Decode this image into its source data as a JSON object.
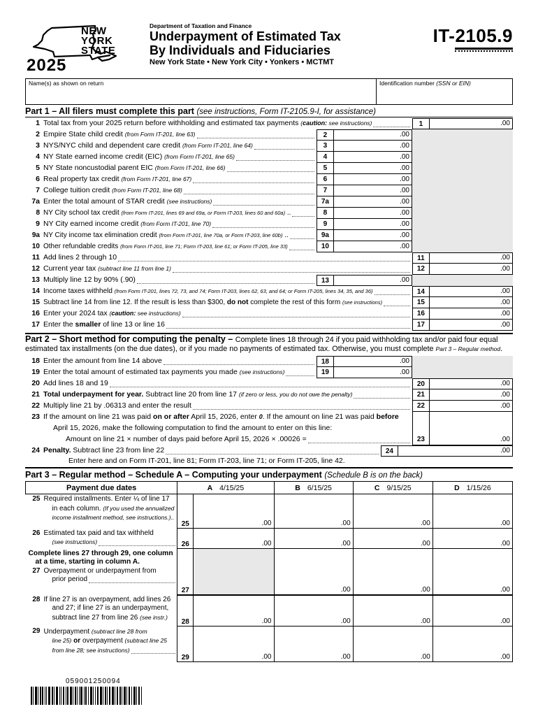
{
  "form": {
    "year": "2025",
    "logo_line1": "NEW",
    "logo_line2": "YORK",
    "logo_line3": "STATE",
    "department": "Department of Taxation and Finance",
    "title1": "Underpayment of Estimated Tax",
    "title2": "By Individuals and Fiduciaries",
    "subtitle": "New York State • New York City • Yonkers • MCTMT",
    "number_prefix": "IT-",
    "number_main": "2105.9"
  },
  "identity": {
    "name_label": "Name(s) as shown on return",
    "name_value": "",
    "id_label": "Identification number ",
    "id_label_italic": "(SSN or EIN)",
    "id_value": ""
  },
  "part1": {
    "title": "Part 1 – All filers must complete this part ",
    "title_note": "(see instructions, Form IT-2105.9-I, for assistance)",
    "rows": [
      {
        "num": "1",
        "segs": [
          [
            "Total tax from your 2025 return before withholding and estimated tax payments ",
            "r"
          ],
          [
            "(",
            "i"
          ],
          [
            "caution:",
            "bi"
          ],
          [
            " see instructions)",
            "i"
          ]
        ],
        "amount": ".00"
      },
      {
        "num": "2",
        "segs": [
          [
            "Empire State child credit ",
            "r"
          ],
          [
            "(from Form IT-201, line 63)",
            "i"
          ]
        ],
        "amount": ".00"
      },
      {
        "num": "3",
        "segs": [
          [
            "NYS/NYC child and dependent care credit ",
            "r"
          ],
          [
            "(from Form IT-201, line 64)",
            "i"
          ]
        ],
        "amount": ".00"
      },
      {
        "num": "4",
        "segs": [
          [
            "NY State earned income credit (EIC) ",
            "r"
          ],
          [
            "(from Form IT-201, line 65)",
            "i"
          ]
        ],
        "amount": ".00"
      },
      {
        "num": "5",
        "segs": [
          [
            "NY State noncustodial parent EIC ",
            "r"
          ],
          [
            "(from Form IT-201, line 66)",
            "i"
          ]
        ],
        "amount": ".00"
      },
      {
        "num": "6",
        "segs": [
          [
            "Real property tax credit ",
            "r"
          ],
          [
            "(from Form IT-201, line 67)",
            "i"
          ]
        ],
        "amount": ".00"
      },
      {
        "num": "7",
        "segs": [
          [
            "College tuition credit ",
            "r"
          ],
          [
            "(from Form IT-201, line 68)",
            "i"
          ]
        ],
        "amount": ".00"
      },
      {
        "num": "7a",
        "segs": [
          [
            "Enter the total amount of STAR credit ",
            "r"
          ],
          [
            "(see instructions)",
            "i"
          ]
        ],
        "amount": ".00"
      },
      {
        "num": "8",
        "segs": [
          [
            "NY City school tax credit ",
            "r"
          ],
          [
            "(from Form IT-201, lines 69 and 69a, or Form IT-203, lines 60 and 60a)",
            "i"
          ],
          [
            " ..",
            "r"
          ]
        ],
        "amount": ".00"
      },
      {
        "num": "9",
        "segs": [
          [
            "NY City earned income credit ",
            "r"
          ],
          [
            "(from Form IT-201, line 70)",
            "i"
          ]
        ],
        "amount": ".00"
      },
      {
        "num": "9a",
        "segs": [
          [
            "NY City income tax elimination credit ",
            "r"
          ],
          [
            "(from Form IT-201, line 70a, or Form IT-203, line 60b)",
            "i"
          ],
          [
            " ..",
            "r"
          ]
        ],
        "amount": ".00"
      },
      {
        "num": "10",
        "segs": [
          [
            "Other refundable credits ",
            "r"
          ],
          [
            "(from Form IT-201, line 71; Form IT-203, line 61; or Form IT-205, line 33)",
            "i"
          ]
        ],
        "amount": ".00"
      },
      {
        "num": "11",
        "segs": [
          [
            "Add lines 2 through 10",
            "r"
          ]
        ],
        "amount": ".00"
      },
      {
        "num": "12",
        "segs": [
          [
            "Current year tax ",
            "r"
          ],
          [
            "(subtract line 11 from line 1)",
            "i"
          ]
        ],
        "amount": ".00"
      },
      {
        "num": "13",
        "segs": [
          [
            "Multiply line 12 by 90% (.90)",
            "r"
          ]
        ],
        "amount": ".00"
      },
      {
        "num": "14",
        "segs": [
          [
            "Income taxes withheld ",
            "r"
          ],
          [
            "(from Form IT-201, lines 72, 73, and 74; Form IT-203, lines 62, 63, and 64; or Form IT-205, lines 34, 35, and 36)",
            "i"
          ]
        ],
        "amount": ".00"
      },
      {
        "num": "15",
        "segs": [
          [
            "Subtract line 14 from line 12. If the result is less than $300, ",
            "r"
          ],
          [
            "do not",
            "b"
          ],
          [
            " complete the rest of this form ",
            "r"
          ],
          [
            "(see instructions)",
            "i"
          ]
        ],
        "amount": ".00"
      },
      {
        "num": "16",
        "segs": [
          [
            "Enter your 2024 tax ",
            "r"
          ],
          [
            "(",
            "i"
          ],
          [
            "caution:",
            "bi"
          ],
          [
            " see instructions)",
            "i"
          ]
        ],
        "amount": ".00"
      },
      {
        "num": "17",
        "segs": [
          [
            "Enter the ",
            "r"
          ],
          [
            "smaller",
            "b"
          ],
          [
            " of line 13 or line 16",
            "r"
          ]
        ],
        "amount": ".00"
      }
    ]
  },
  "part2": {
    "title": "Part 2 – Short method for computing the penalty – ",
    "intro": [
      [
        "Complete lines 18 through 24 if you paid withholding tax and/or paid four equal estimated tax installments (on the due dates), or if you made no payments of estimated tax. Otherwise, you must complete ",
        "r"
      ],
      [
        "Part 3 – Regular method",
        "i"
      ],
      [
        ".",
        "r"
      ]
    ],
    "rows": [
      {
        "num": "18",
        "segs": [
          [
            "Enter the amount from line 14 above",
            "r"
          ]
        ],
        "amount": ".00"
      },
      {
        "num": "19",
        "segs": [
          [
            "Enter the total amount of estimated tax payments you made ",
            "r"
          ],
          [
            "(see instructions)",
            "i"
          ]
        ],
        "amount": ".00"
      },
      {
        "num": "20",
        "segs": [
          [
            "Add lines 18 and 19",
            "r"
          ]
        ],
        "amount": ".00"
      },
      {
        "num": "21",
        "segs": [
          [
            "Total underpayment for year.",
            "b"
          ],
          [
            " Subtract line 20 from line 17 ",
            "r"
          ],
          [
            "(if zero or less, you do not owe the penalty)",
            "i"
          ]
        ],
        "amount": ".00"
      },
      {
        "num": "22",
        "segs": [
          [
            "Multiply line 21 by .06313 and enter the result",
            "r"
          ]
        ],
        "amount": ".00"
      }
    ],
    "line23": {
      "num": "23",
      "l1": [
        [
          "If the amount on line 21 was paid ",
          "r"
        ],
        [
          "on or after",
          "b"
        ],
        [
          " April 15, 2026, enter ",
          "r"
        ],
        [
          "0",
          "bi"
        ],
        [
          ". If the amount on line 21 was paid ",
          "r"
        ],
        [
          "before",
          "b"
        ]
      ],
      "l2": [
        [
          "April 15, 2026, make the following computation to find the amount to enter on this line:",
          "r"
        ]
      ],
      "l3": [
        [
          "Amount on line 21  ×  number of days paid before April 15, 2026  ×  .00026  =",
          "r"
        ]
      ],
      "amount": ".00"
    },
    "line24": {
      "num": "24",
      "segs": [
        [
          "Penalty.",
          "b"
        ],
        [
          " Subtract line 23 from line 22",
          "r"
        ]
      ],
      "amount": ".00",
      "note": "Enter here and on Form IT-201, line 81; Form IT-203, line 71; or Form IT-205, line 42."
    }
  },
  "part3": {
    "title": "Part 3 – Regular method – Schedule A – Computing your underpayment ",
    "title_note": "(Schedule B is on the back)",
    "table": {
      "label_header": "Payment due dates",
      "col_a_letter": "A",
      "col_a_date": "4/15/25",
      "col_b_letter": "B",
      "col_b_date": "6/15/25",
      "col_c_letter": "C",
      "col_c_date": "9/15/25",
      "col_d_letter": "D",
      "col_d_date": "1/15/26",
      "row25": {
        "num": "25",
        "l1": [
          [
            "Required installments. Enter ¼ of line 17",
            "r"
          ]
        ],
        "l2": [
          [
            "in each column. ",
            "r"
          ],
          [
            "(If you used the annualized",
            "i"
          ]
        ],
        "l3": [
          [
            "income installment method, see instructions.)..",
            "i"
          ]
        ],
        "a": ".00",
        "b": ".00",
        "c": ".00",
        "d": ".00"
      },
      "row26": {
        "num": "26",
        "l1": [
          [
            "Estimated tax paid and tax withheld",
            "r"
          ]
        ],
        "l2": [
          [
            "(see instructions)",
            "i"
          ]
        ],
        "a": ".00",
        "b": ".00",
        "c": ".00",
        "d": ".00"
      },
      "band_l1": "Complete lines 27 through 29, one column",
      "band_l2": "at a time, starting in column A.",
      "row27": {
        "num": "27",
        "l1": [
          [
            "Overpayment or underpayment from",
            "r"
          ]
        ],
        "l2": [
          [
            "prior period",
            "r"
          ]
        ],
        "b": ".00",
        "c": ".00",
        "d": ".00"
      },
      "row28": {
        "num": "28",
        "l1": [
          [
            "If line 27 is an overpayment, add lines 26",
            "r"
          ]
        ],
        "l2": [
          [
            "and 27; if line 27 is an underpayment,",
            "r"
          ]
        ],
        "l3": [
          [
            "subtract line 27 from line 26 ",
            "r"
          ],
          [
            "(see instr.)",
            "i"
          ]
        ],
        "a": ".00",
        "b": ".00",
        "c": ".00",
        "d": ".00"
      },
      "row29": {
        "num": "29",
        "l1": [
          [
            "Underpayment ",
            "r"
          ],
          [
            "(subtract line 28 from",
            "i"
          ]
        ],
        "l2": [
          [
            "line 25)",
            "i"
          ],
          [
            " or ",
            "b"
          ],
          [
            "overpayment ",
            "r"
          ],
          [
            "(subtract line 25",
            "i"
          ]
        ],
        "l3": [
          [
            "from line 28; see instructions)",
            "i"
          ]
        ],
        "a": ".00",
        "b": ".00",
        "c": ".00",
        "d": ".00"
      }
    }
  },
  "footer": {
    "doc_code": "059001250094"
  }
}
